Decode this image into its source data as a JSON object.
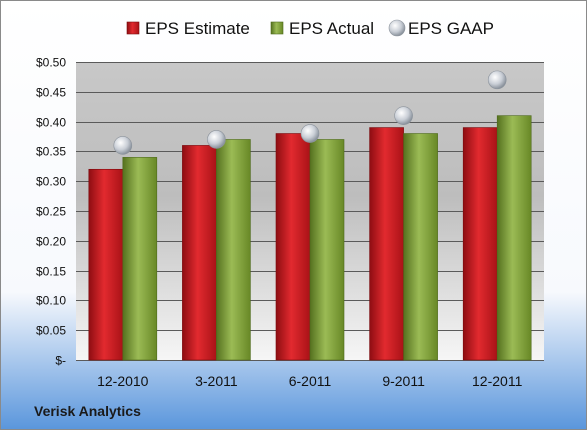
{
  "chart_data": {
    "type": "bar",
    "categories": [
      "12-2010",
      "3-2011",
      "6-2011",
      "9-2011",
      "12-2011"
    ],
    "series": [
      {
        "name": "EPS Estimate",
        "kind": "bar",
        "color": "#c8171e",
        "values": [
          0.32,
          0.36,
          0.38,
          0.39,
          0.39
        ]
      },
      {
        "name": "EPS Actual",
        "kind": "bar",
        "color": "#7a9a35",
        "values": [
          0.34,
          0.37,
          0.37,
          0.38,
          0.41
        ]
      },
      {
        "name": "EPS GAAP",
        "kind": "marker",
        "color": "#b0b8c2",
        "values": [
          0.36,
          0.37,
          0.38,
          0.41,
          0.47
        ]
      }
    ],
    "ylim": [
      0,
      0.5
    ],
    "yticks": [
      0,
      0.05,
      0.1,
      0.15,
      0.2,
      0.25,
      0.3,
      0.35,
      0.4,
      0.45,
      0.5
    ],
    "ytick_labels": [
      "$-",
      "$0.05",
      "$0.10",
      "$0.15",
      "$0.20",
      "$0.25",
      "$0.30",
      "$0.35",
      "$0.40",
      "$0.45",
      "$0.50"
    ],
    "grid": true,
    "legend_position": "top",
    "annotation": "Verisk Analytics"
  }
}
